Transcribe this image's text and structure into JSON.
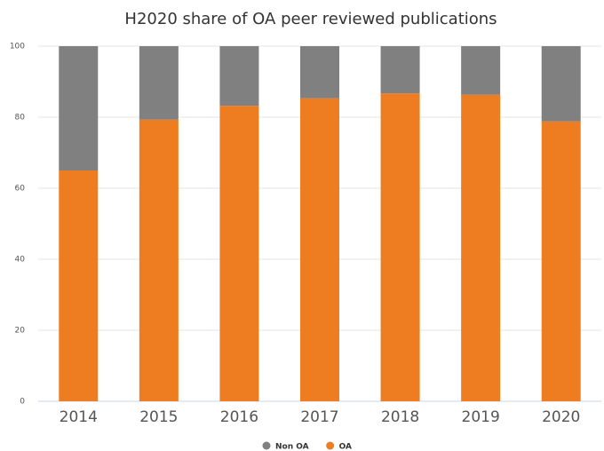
{
  "chart_data": {
    "type": "stacked_bar",
    "title": "H2020 share of OA peer reviewed publications",
    "categories": [
      "2014",
      "2015",
      "2016",
      "2017",
      "2018",
      "2019",
      "2020"
    ],
    "series": [
      {
        "name": "Non OA",
        "color": "#808080",
        "values": [
          35,
          20.7,
          16.8,
          14.7,
          13.3,
          13.7,
          21.2
        ]
      },
      {
        "name": "OA",
        "color": "#ee7d22",
        "values": [
          65,
          79.3,
          83.2,
          85.3,
          86.7,
          86.3,
          78.8
        ]
      }
    ],
    "ylim": [
      0,
      100
    ],
    "yticks": [
      0,
      20,
      40,
      60,
      80,
      100
    ],
    "grid": true,
    "legend": "bottom"
  }
}
